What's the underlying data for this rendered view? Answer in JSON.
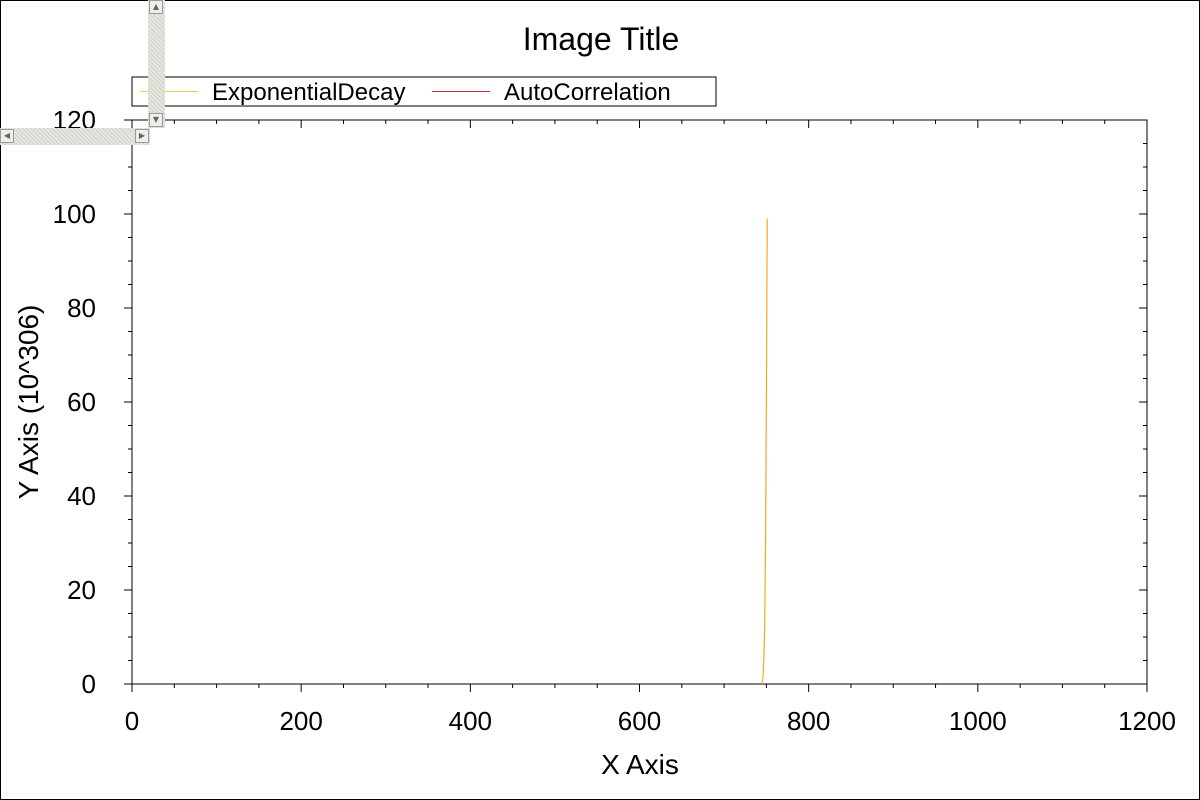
{
  "chart_data": {
    "type": "line",
    "title": "Image Title",
    "xlabel": "X Axis",
    "ylabel": "Y Axis (10^306)",
    "xlim": [
      0,
      1200
    ],
    "ylim": [
      0,
      120
    ],
    "x_ticks": [
      0,
      200,
      400,
      600,
      800,
      1000,
      1200
    ],
    "y_ticks": [
      0,
      20,
      40,
      60,
      80,
      100,
      120
    ],
    "grid": false,
    "legend_position": "top-left",
    "series": [
      {
        "name": "ExponentialDecay",
        "color": "#f5a623",
        "legend_color": "#e8d34a",
        "x": [
          745,
          746,
          747,
          748,
          749,
          750,
          751
        ],
        "y": [
          0,
          1.5,
          5,
          12,
          30,
          60,
          99
        ]
      },
      {
        "name": "AutoCorrelation",
        "color": "#c8323c",
        "legend_color": "#c8323c",
        "x": [],
        "y": []
      }
    ]
  }
}
